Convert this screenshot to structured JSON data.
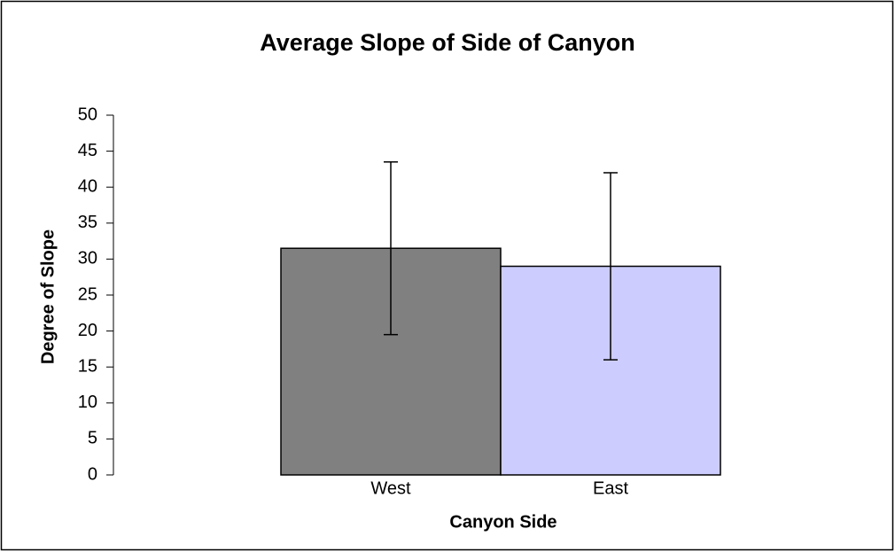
{
  "chart_data": {
    "type": "bar",
    "title": "Average Slope of Side of Canyon",
    "x_label": "Canyon Side",
    "y_label": "Degree of Slope",
    "categories": [
      "West",
      "East"
    ],
    "values": [
      31.5,
      29
    ],
    "errors": [
      12,
      13
    ],
    "colors": [
      "#808080",
      "#ccccff"
    ],
    "ylim": [
      0,
      50
    ],
    "yticks": [
      0,
      5,
      10,
      15,
      20,
      25,
      30,
      35,
      40,
      45,
      50
    ],
    "grid": false
  }
}
